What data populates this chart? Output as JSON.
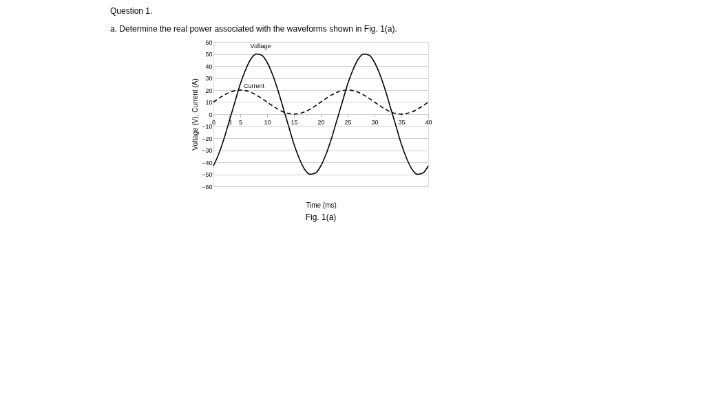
{
  "chart_data": {
    "type": "line",
    "title": "Question 1.",
    "subtitle": "a.   Determine the real power associated with the waveforms shown in Fig. 1(a).",
    "xlabel": "Time (ms)",
    "ylabel": "Voltage (V), Current (A)",
    "x": [
      0,
      1,
      2,
      3,
      4,
      5,
      6,
      7,
      8,
      9,
      10,
      11,
      12,
      13,
      14,
      15,
      16,
      17,
      18,
      19,
      20,
      21,
      22,
      23,
      24,
      25,
      26,
      27,
      28,
      29,
      30,
      31,
      32,
      33,
      34,
      35,
      36,
      37,
      38,
      39,
      40
    ],
    "series": [
      {
        "name": "Voltage",
        "color": "#000000",
        "line_style": "solid",
        "values": [
          -43,
          -33,
          -20,
          -5,
          10,
          25,
          37,
          46,
          50,
          49,
          43,
          33,
          20,
          5,
          -10,
          -25,
          -37,
          -46,
          -50,
          -49,
          -43,
          -33,
          -20,
          -5,
          10,
          25,
          37,
          46,
          50,
          49,
          43,
          33,
          20,
          5,
          -10,
          -25,
          -37,
          -46,
          -50,
          -49,
          -43
        ]
      },
      {
        "name": "Current",
        "color": "#000000",
        "line_style": "dashed",
        "values": [
          10,
          13.1,
          15.9,
          18.1,
          19.5,
          20,
          19.5,
          18.1,
          15.9,
          13.1,
          10,
          6.9,
          4.1,
          1.9,
          0.5,
          0,
          0.5,
          1.9,
          4.1,
          6.9,
          10,
          13.1,
          15.9,
          18.1,
          19.5,
          20,
          19.5,
          18.1,
          15.9,
          13.1,
          10,
          6.9,
          4.1,
          1.9,
          0.5,
          0,
          0.5,
          1.9,
          4.1,
          6.9,
          10
        ]
      }
    ],
    "xlim": [
      0,
      40
    ],
    "xticks": [
      0,
      3,
      5,
      10,
      15,
      20,
      25,
      30,
      35,
      40
    ],
    "ylim": [
      -60,
      60
    ],
    "yticks": [
      -60,
      -50,
      -40,
      -30,
      -20,
      -10,
      0,
      10,
      20,
      30,
      40,
      50,
      60
    ],
    "grid": "y",
    "legend": false,
    "marker": "none",
    "annotations": [
      "Fig. 1(a)"
    ]
  }
}
